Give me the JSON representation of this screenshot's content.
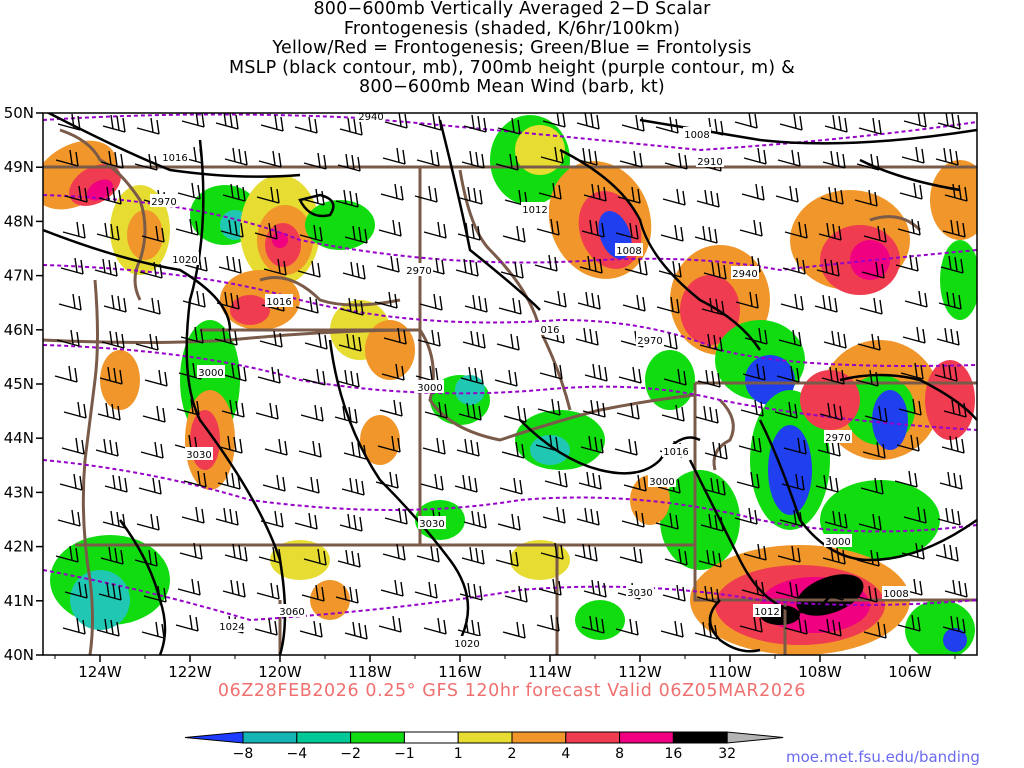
{
  "title_lines": [
    "800−600mb Vertically Averaged 2−D Scalar",
    "Frontogenesis (shaded, K/6hr/100km)",
    "Yellow/Red = Frontogenesis;  Green/Blue = Frontolysis",
    "MSLP (black contour, mb), 700mb height (purple contour, m) &",
    "800−600mb Mean Wind (barb, kt)"
  ],
  "valid_line": "06Z28FEB2026 0.25° GFS 120hr forecast Valid 06Z05MAR2026",
  "credit": "moe.met.fsu.edu/banding",
  "map": {
    "lon_ticks": [
      "124W",
      "122W",
      "120W",
      "118W",
      "116W",
      "114W",
      "112W",
      "110W",
      "108W",
      "106W"
    ],
    "lat_ticks": [
      "50N",
      "49N",
      "48N",
      "47N",
      "46N",
      "45N",
      "44N",
      "43N",
      "42N",
      "41N",
      "40N"
    ],
    "mslp_labels": [
      "1016",
      "1008",
      "1012",
      "1020",
      "1016",
      "016",
      "1008",
      "1016",
      "1012",
      "1008",
      "1024",
      "1020"
    ],
    "height_labels": [
      "2940",
      "2910",
      "2970",
      "2970",
      "2970",
      "2940",
      "3000",
      "3000",
      "2970",
      "3030",
      "3000",
      "3000",
      "3030",
      "3060",
      "3030"
    ],
    "colors": {
      "frontolysis_strong": "#2040f0",
      "frontolysis_mid": "#20c8b4",
      "frontolysis_weak": "#10dc10",
      "frontogenesis_weak": "#e6dc32",
      "frontogenesis_mid": "#f0962a",
      "frontogenesis_strong": "#f03c50",
      "frontogenesis_extreme": "#f00080",
      "max": "#000000",
      "mslp": "#000000",
      "height": "#9600c8",
      "borders": "#7a5a48"
    }
  },
  "colorbar": {
    "labels": [
      "−8",
      "−4",
      "−2",
      "−1",
      "1",
      "2",
      "4",
      "8",
      "16",
      "32"
    ],
    "colors": [
      "#1e3cff",
      "#14b4b4",
      "#00c896",
      "#14dc14",
      "#ffffff",
      "#e6dc32",
      "#f0962a",
      "#f03c50",
      "#f00080",
      "#000000",
      "#b4b4b4"
    ]
  }
}
